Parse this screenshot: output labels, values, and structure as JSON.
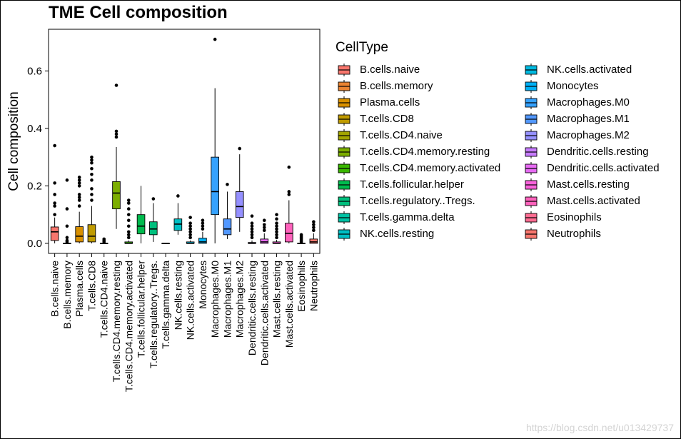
{
  "title": "TME Cell composition",
  "watermark": "https://blog.csdn.net/u013429737",
  "chart_data": {
    "type": "boxplot",
    "ylabel": "Cell composition",
    "xlabel": "",
    "ylim": [
      -0.035,
      0.745
    ],
    "yticks": [
      0.0,
      0.2,
      0.4,
      0.6
    ],
    "ytick_labels": [
      "0.0",
      "0.2",
      "0.4",
      "0.6"
    ],
    "grid": false,
    "legend": {
      "title": "CellType",
      "position": "right",
      "columns": 2
    },
    "categories": [
      "B.cells.naive",
      "B.cells.memory",
      "Plasma.cells",
      "T.cells.CD8",
      "T.cells.CD4.naive",
      "T.cells.CD4.memory.resting",
      "T.cells.CD4.memory.activated",
      "T.cells.follicular.helper",
      "T.cells.regulatory..Tregs.",
      "T.cells.gamma.delta",
      "NK.cells.resting",
      "NK.cells.activated",
      "Monocytes",
      "Macrophages.M0",
      "Macrophages.M1",
      "Macrophages.M2",
      "Dendritic.cells.resting",
      "Dendritic.cells.activated",
      "Mast.cells.resting",
      "Mast.cells.activated",
      "Eosinophils",
      "Neutrophils"
    ],
    "colors": [
      "#F8766D",
      "#EA8331",
      "#D89000",
      "#C09B00",
      "#A3A500",
      "#7CAE00",
      "#39B600",
      "#00BB4E",
      "#00BF7D",
      "#00C1A3",
      "#00BFC4",
      "#00BAE0",
      "#00B0F6",
      "#35A2FF",
      "#5298FF",
      "#9590FF",
      "#C77CFF",
      "#E76BF3",
      "#FA62DB",
      "#FF62BC",
      "#FF6C91",
      "#F8766D"
    ],
    "boxes": [
      {
        "category": "B.cells.naive",
        "whislo": 0.0,
        "q1": 0.01,
        "median": 0.04,
        "q3": 0.057,
        "whishi": 0.09,
        "outliers": [
          0.1,
          0.13,
          0.14,
          0.17,
          0.21,
          0.34
        ]
      },
      {
        "category": "B.cells.memory",
        "whislo": 0.0,
        "q1": 0.0,
        "median": 0.0,
        "q3": 0.0,
        "whishi": 0.0,
        "outliers": [
          0.005,
          0.01,
          0.02,
          0.06,
          0.12,
          0.22
        ]
      },
      {
        "category": "Plasma.cells",
        "whislo": 0.0,
        "q1": 0.005,
        "median": 0.025,
        "q3": 0.058,
        "whishi": 0.11,
        "outliers": [
          0.13,
          0.15,
          0.16,
          0.17,
          0.2,
          0.21,
          0.22,
          0.23
        ]
      },
      {
        "category": "T.cells.CD8",
        "whislo": 0.0,
        "q1": 0.005,
        "median": 0.025,
        "q3": 0.065,
        "whishi": 0.13,
        "outliers": [
          0.15,
          0.17,
          0.19,
          0.22,
          0.24,
          0.26,
          0.28,
          0.29,
          0.3
        ]
      },
      {
        "category": "T.cells.CD4.naive",
        "whislo": 0.0,
        "q1": 0.0,
        "median": 0.0,
        "q3": 0.0,
        "whishi": 0.0,
        "outliers": [
          0.005,
          0.01,
          0.015
        ]
      },
      {
        "category": "T.cells.CD4.memory.resting",
        "whislo": 0.05,
        "q1": 0.12,
        "median": 0.175,
        "q3": 0.215,
        "whishi": 0.335,
        "outliers": [
          0.37,
          0.38,
          0.39,
          0.55
        ]
      },
      {
        "category": "T.cells.CD4.memory.activated",
        "whislo": 0.0,
        "q1": 0.0,
        "median": 0.0,
        "q3": 0.005,
        "whishi": 0.01,
        "outliers": [
          0.02,
          0.03,
          0.04,
          0.06,
          0.08,
          0.1,
          0.12,
          0.14,
          0.15
        ]
      },
      {
        "category": "T.cells.follicular.helper",
        "whislo": 0.0,
        "q1": 0.033,
        "median": 0.06,
        "q3": 0.1,
        "whishi": 0.2,
        "outliers": []
      },
      {
        "category": "T.cells.regulatory..Tregs.",
        "whislo": 0.005,
        "q1": 0.03,
        "median": 0.05,
        "q3": 0.075,
        "whishi": 0.14,
        "outliers": [
          0.155
        ]
      },
      {
        "category": "T.cells.gamma.delta",
        "whislo": 0.0,
        "q1": 0.0,
        "median": 0.0,
        "q3": 0.0,
        "whishi": 0.0,
        "outliers": []
      },
      {
        "category": "NK.cells.resting",
        "whislo": 0.03,
        "q1": 0.045,
        "median": 0.067,
        "q3": 0.085,
        "whishi": 0.14,
        "outliers": [
          0.165
        ]
      },
      {
        "category": "NK.cells.activated",
        "whislo": 0.0,
        "q1": 0.0,
        "median": 0.0,
        "q3": 0.005,
        "whishi": 0.01,
        "outliers": [
          0.02,
          0.03,
          0.04,
          0.05,
          0.06,
          0.07,
          0.09
        ]
      },
      {
        "category": "Monocytes",
        "whislo": 0.0,
        "q1": 0.0,
        "median": 0.005,
        "q3": 0.018,
        "whishi": 0.04,
        "outliers": [
          0.05,
          0.06,
          0.07,
          0.08
        ]
      },
      {
        "category": "Macrophages.M0",
        "whislo": 0.0,
        "q1": 0.1,
        "median": 0.18,
        "q3": 0.3,
        "whishi": 0.54,
        "outliers": [
          0.71
        ]
      },
      {
        "category": "Macrophages.M1",
        "whislo": 0.015,
        "q1": 0.03,
        "median": 0.05,
        "q3": 0.085,
        "whishi": 0.18,
        "outliers": [
          0.205
        ]
      },
      {
        "category": "Macrophages.M2",
        "whislo": 0.04,
        "q1": 0.09,
        "median": 0.128,
        "q3": 0.18,
        "whishi": 0.31,
        "outliers": [
          0.33
        ]
      },
      {
        "category": "Dendritic.cells.resting",
        "whislo": 0.0,
        "q1": 0.0,
        "median": 0.0,
        "q3": 0.003,
        "whishi": 0.01,
        "outliers": [
          0.02,
          0.03,
          0.04,
          0.05,
          0.06,
          0.07,
          0.095
        ]
      },
      {
        "category": "Dendritic.cells.activated",
        "whislo": 0.0,
        "q1": 0.0,
        "median": 0.005,
        "q3": 0.015,
        "whishi": 0.035,
        "outliers": [
          0.045,
          0.055,
          0.065,
          0.08
        ]
      },
      {
        "category": "Mast.cells.resting",
        "whislo": 0.0,
        "q1": 0.0,
        "median": 0.0,
        "q3": 0.005,
        "whishi": 0.012,
        "outliers": [
          0.02,
          0.03,
          0.04,
          0.05,
          0.06,
          0.07,
          0.085,
          0.1
        ]
      },
      {
        "category": "Mast.cells.activated",
        "whislo": 0.0,
        "q1": 0.005,
        "median": 0.035,
        "q3": 0.07,
        "whishi": 0.15,
        "outliers": [
          0.17,
          0.18,
          0.265
        ]
      },
      {
        "category": "Eosinophils",
        "whislo": 0.0,
        "q1": 0.0,
        "median": 0.0,
        "q3": 0.0,
        "whishi": 0.0,
        "outliers": [
          0.005,
          0.01,
          0.015,
          0.02,
          0.025,
          0.03
        ]
      },
      {
        "category": "Neutrophils",
        "whislo": 0.0,
        "q1": 0.0,
        "median": 0.005,
        "q3": 0.015,
        "whishi": 0.035,
        "outliers": [
          0.045,
          0.055,
          0.065,
          0.075
        ]
      }
    ]
  }
}
